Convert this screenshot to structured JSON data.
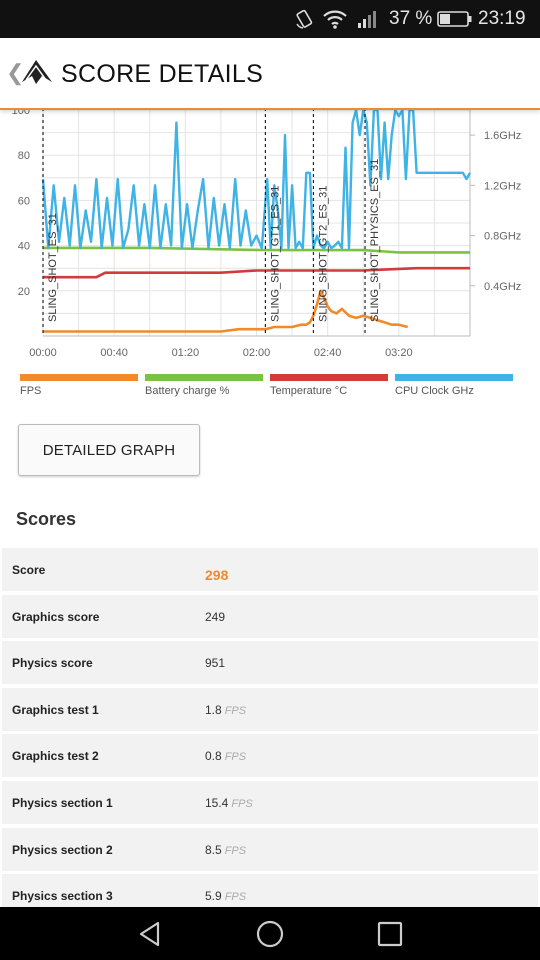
{
  "status_bar": {
    "battery_percent": "37 %",
    "time": "23:19"
  },
  "header": {
    "title": "SCORE DETAILS"
  },
  "chart_data": {
    "type": "line",
    "x_ticks": [
      "00:00",
      "00:40",
      "01:20",
      "02:00",
      "02:40",
      "03:20"
    ],
    "y_left_ticks": [
      "20",
      "40",
      "60",
      "80",
      "100"
    ],
    "y_right_ticks": [
      "0.4GHz",
      "0.8GHz",
      "1.2GHz",
      "1.6GHz"
    ],
    "ylim_left": [
      0,
      100
    ],
    "ylim_right": [
      0,
      1.8
    ],
    "grid": true,
    "test_markers": [
      {
        "label": "SLING_SHOT_ES_31",
        "x_sec": 0
      },
      {
        "label": "SLING_SHOT_GT1_ES_31",
        "x_sec": 125
      },
      {
        "label": "SLING_SHOT_GT2_ES_31",
        "x_sec": 152
      },
      {
        "label": "SLING_SHOT_PHYSICS_ES_31",
        "x_sec": 181
      }
    ],
    "series": [
      {
        "name": "FPS",
        "color": "#f08a2b",
        "axis": "left",
        "x": [
          0,
          20,
          40,
          60,
          80,
          100,
          110,
          125,
          130,
          135,
          140,
          145,
          148,
          150,
          152,
          154,
          156,
          158,
          160,
          162,
          165,
          168,
          172,
          176,
          180,
          184,
          188,
          192,
          196,
          200,
          205
        ],
        "values": [
          2,
          2,
          2,
          2,
          2,
          2,
          3,
          3,
          4,
          4,
          4,
          5,
          5,
          6,
          9,
          14,
          20,
          17,
          13,
          11,
          10,
          12,
          9,
          8,
          9,
          8,
          7,
          6,
          5,
          5,
          4
        ]
      },
      {
        "name": "Battery charge %",
        "color": "#7cc242",
        "axis": "left",
        "x": [
          0,
          60,
          125,
          140,
          180,
          200,
          240
        ],
        "values": [
          39,
          39,
          38,
          38,
          38,
          37,
          37
        ]
      },
      {
        "name": "Temperature °C",
        "color": "#d13b3b",
        "axis": "left",
        "x": [
          0,
          30,
          35,
          100,
          120,
          125,
          150,
          180,
          210,
          240
        ],
        "values": [
          26,
          26,
          28,
          28,
          29,
          29,
          29,
          29,
          30,
          30
        ]
      },
      {
        "name": "CPU Clock GHz",
        "color": "#3fb2e6",
        "axis": "right",
        "x": [
          0,
          3,
          6,
          9,
          12,
          15,
          18,
          21,
          24,
          27,
          30,
          33,
          36,
          39,
          42,
          45,
          48,
          51,
          54,
          57,
          60,
          63,
          66,
          69,
          72,
          75,
          78,
          81,
          84,
          87,
          90,
          93,
          96,
          99,
          102,
          105,
          108,
          111,
          114,
          117,
          120,
          123,
          126,
          128,
          130,
          132,
          134,
          136,
          138,
          140,
          142,
          144,
          146,
          148,
          150,
          152,
          154,
          156,
          158,
          160,
          162,
          164,
          166,
          168,
          170,
          172,
          174,
          176,
          178,
          180,
          182,
          184,
          186,
          188,
          190,
          192,
          194,
          196,
          198,
          200,
          202,
          204,
          206,
          208,
          210,
          212,
          214,
          216,
          218,
          220,
          222,
          224,
          226,
          228,
          230,
          232,
          234,
          236,
          238,
          240
        ],
        "values": [
          1.25,
          0.7,
          1.2,
          0.75,
          1.1,
          0.72,
          1.2,
          0.7,
          1.0,
          0.75,
          1.25,
          0.7,
          1.1,
          0.72,
          1.25,
          0.7,
          0.85,
          1.2,
          0.72,
          1.05,
          0.7,
          1.2,
          0.7,
          1.05,
          0.72,
          1.7,
          0.7,
          1.05,
          0.7,
          1.0,
          1.25,
          0.7,
          1.1,
          0.72,
          1.05,
          0.7,
          1.25,
          0.72,
          1.0,
          0.72,
          0.8,
          0.7,
          1.25,
          0.7,
          1.2,
          1.0,
          0.7,
          1.6,
          0.7,
          1.2,
          0.7,
          0.75,
          0.7,
          1.3,
          1.3,
          0.7,
          0.8,
          0.72,
          0.7,
          0.75,
          0.7,
          0.72,
          0.75,
          0.7,
          1.5,
          0.7,
          1.7,
          1.8,
          1.6,
          1.8,
          1.7,
          1.2,
          1.8,
          1.8,
          1.25,
          1.7,
          1.25,
          1.6,
          1.8,
          1.75,
          1.8,
          1.25,
          1.8,
          1.8,
          1.3,
          1.3,
          1.3,
          1.3,
          1.3,
          1.3,
          1.3,
          1.3,
          1.3,
          1.3,
          1.3,
          1.3,
          1.3,
          1.3,
          1.25,
          1.3
        ]
      }
    ]
  },
  "legend": [
    {
      "label": "FPS",
      "color": "#f08a2b"
    },
    {
      "label": "Battery charge %",
      "color": "#7cc242"
    },
    {
      "label": "Temperature °C",
      "color": "#d13b3b"
    },
    {
      "label": "CPU Clock GHz",
      "color": "#3fb2e6"
    }
  ],
  "detailed_graph_label": "DETAILED GRAPH",
  "scores": {
    "heading": "Scores",
    "rows": [
      {
        "label": "Score",
        "value": "298",
        "unit": ""
      },
      {
        "label": "Graphics score",
        "value": "249",
        "unit": ""
      },
      {
        "label": "Physics score",
        "value": "951",
        "unit": ""
      },
      {
        "label": "Graphics test 1",
        "value": "1.8",
        "unit": "FPS"
      },
      {
        "label": "Graphics test 2",
        "value": "0.8",
        "unit": "FPS"
      },
      {
        "label": "Physics section 1",
        "value": "15.4",
        "unit": "FPS"
      },
      {
        "label": "Physics section 2",
        "value": "8.5",
        "unit": "FPS"
      },
      {
        "label": "Physics section 3",
        "value": "5.9",
        "unit": "FPS"
      }
    ]
  }
}
